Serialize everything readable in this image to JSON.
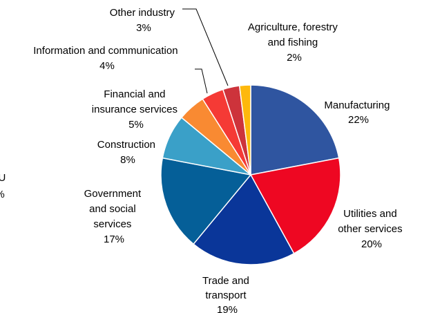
{
  "chart_data": {
    "type": "pie",
    "title": "",
    "slices": [
      {
        "name": "Manufacturing",
        "value": 22,
        "label": "22%",
        "color": "#2F55A0"
      },
      {
        "name": "Utilities and other services",
        "value": 20,
        "label": "20%",
        "color": "#EE0722"
      },
      {
        "name": "Trade and transport",
        "value": 19,
        "label": "19%",
        "color": "#0A3699"
      },
      {
        "name": "Government and social services",
        "value": 17,
        "label": "17%",
        "color": "#055F98"
      },
      {
        "name": "Construction",
        "value": 8,
        "label": "8%",
        "color": "#3AA0C8"
      },
      {
        "name": "Financial and insurance services",
        "value": 5,
        "label": "5%",
        "color": "#F98A32"
      },
      {
        "name": "Information and communication",
        "value": 4,
        "label": "4%",
        "color": "#F53A35"
      },
      {
        "name": "Other industry",
        "value": 3,
        "label": "3%",
        "color": "#CD333B"
      },
      {
        "name": "Agriculture, forestry and fishing",
        "value": 2,
        "label": "2%",
        "color": "#FEB80C"
      }
    ],
    "cropped_label": {
      "line1": "EU",
      "line2": "%"
    }
  }
}
